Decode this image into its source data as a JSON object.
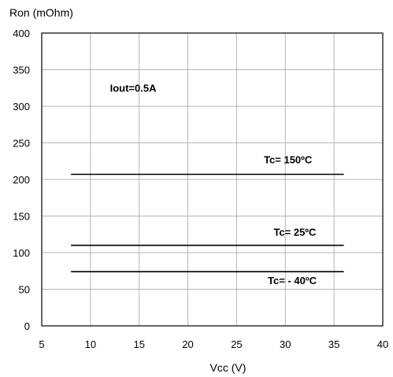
{
  "chart_data": {
    "type": "line",
    "xlabel": "Vcc (V)",
    "ylabel": "Ron (mOhm)",
    "xlim": [
      5,
      40
    ],
    "ylim": [
      0,
      400
    ],
    "x_ticks": [
      5,
      10,
      15,
      20,
      25,
      30,
      35,
      40
    ],
    "y_ticks": [
      0,
      50,
      100,
      150,
      200,
      250,
      300,
      350,
      400
    ],
    "grid": true,
    "annotations": [
      {
        "text": "Iout=0.5A",
        "x": 12,
        "y": 320
      },
      {
        "text": "Tc= 150ºC",
        "x": 27.8,
        "y": 222
      },
      {
        "text": "Tc= 25ºC",
        "x": 28.8,
        "y": 123
      },
      {
        "text": "Tc= - 40ºC",
        "x": 28.2,
        "y": 57
      }
    ],
    "series": [
      {
        "label": "Tc= 150ºC",
        "x": [
          8,
          36
        ],
        "y": [
          207,
          207
        ]
      },
      {
        "label": "Tc= 25ºC",
        "x": [
          8,
          36
        ],
        "y": [
          110,
          110
        ]
      },
      {
        "label": "Tc= - 40ºC",
        "x": [
          8,
          36
        ],
        "y": [
          74,
          74
        ]
      }
    ]
  }
}
